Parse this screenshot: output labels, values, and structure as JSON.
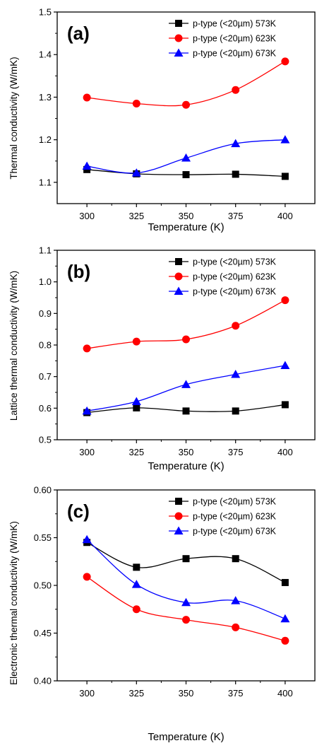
{
  "chart_data": [
    {
      "type": "line",
      "panel_label": "(a)",
      "xlabel": "Temperature (K)",
      "ylabel": "Thermal conductivity (W/mK)",
      "categories": [
        300,
        325,
        350,
        375,
        400
      ],
      "x_ticks": [
        "300",
        "325",
        "350",
        "375",
        "400"
      ],
      "ylim": [
        1.05,
        1.5
      ],
      "y_ticks": [
        "1.1",
        "1.2",
        "1.3",
        "1.4",
        "1.5"
      ],
      "legend_position": "top-right",
      "series": [
        {
          "name": "p-type (<20µm) 573K",
          "marker": "square",
          "color": "#000000",
          "values": [
            1.13,
            1.12,
            1.118,
            1.119,
            1.114
          ]
        },
        {
          "name": "p-type (<20µm) 623K",
          "marker": "circle",
          "color": "#ff0000",
          "values": [
            1.299,
            1.285,
            1.282,
            1.317,
            1.384
          ]
        },
        {
          "name": "p-type (<20µm) 673K",
          "marker": "triangle",
          "color": "#0000ff",
          "values": [
            1.138,
            1.122,
            1.157,
            1.191,
            1.2
          ]
        }
      ]
    },
    {
      "type": "line",
      "panel_label": "(b)",
      "xlabel": "Temperature (K)",
      "ylabel": "Lattice thermal conductivity (W/mK)",
      "categories": [
        300,
        325,
        350,
        375,
        400
      ],
      "x_ticks": [
        "300",
        "325",
        "350",
        "375",
        "400"
      ],
      "ylim": [
        0.5,
        1.1
      ],
      "y_ticks": [
        "0.5",
        "0.6",
        "0.7",
        "0.8",
        "0.9",
        "1.0",
        "1.1"
      ],
      "legend_position": "top-right",
      "series": [
        {
          "name": "p-type (<20µm) 573K",
          "marker": "square",
          "color": "#000000",
          "values": [
            0.586,
            0.601,
            0.591,
            0.591,
            0.611
          ]
        },
        {
          "name": "p-type (<20µm) 623K",
          "marker": "circle",
          "color": "#ff0000",
          "values": [
            0.789,
            0.811,
            0.818,
            0.861,
            0.942
          ]
        },
        {
          "name": "p-type (<20µm) 673K",
          "marker": "triangle",
          "color": "#0000ff",
          "values": [
            0.591,
            0.621,
            0.675,
            0.707,
            0.735
          ]
        }
      ]
    },
    {
      "type": "line",
      "panel_label": "(c)",
      "xlabel": "Temperature (K)",
      "ylabel": "Electronic thermal conductivity (W/mK)",
      "categories": [
        300,
        325,
        350,
        375,
        400
      ],
      "x_ticks": [
        "300",
        "325",
        "350",
        "375",
        "400"
      ],
      "ylim": [
        0.4,
        0.6
      ],
      "y_ticks": [
        "0.40",
        "0.45",
        "0.50",
        "0.55",
        "0.60"
      ],
      "legend_position": "top-right",
      "series": [
        {
          "name": "p-type (<20µm) 573K",
          "marker": "square",
          "color": "#000000",
          "values": [
            0.545,
            0.519,
            0.528,
            0.528,
            0.503
          ]
        },
        {
          "name": "p-type (<20µm) 623K",
          "marker": "circle",
          "color": "#ff0000",
          "values": [
            0.509,
            0.475,
            0.464,
            0.456,
            0.442
          ]
        },
        {
          "name": "p-type (<20µm) 673K",
          "marker": "triangle",
          "color": "#0000ff",
          "values": [
            0.548,
            0.501,
            0.482,
            0.484,
            0.465
          ]
        }
      ]
    }
  ]
}
